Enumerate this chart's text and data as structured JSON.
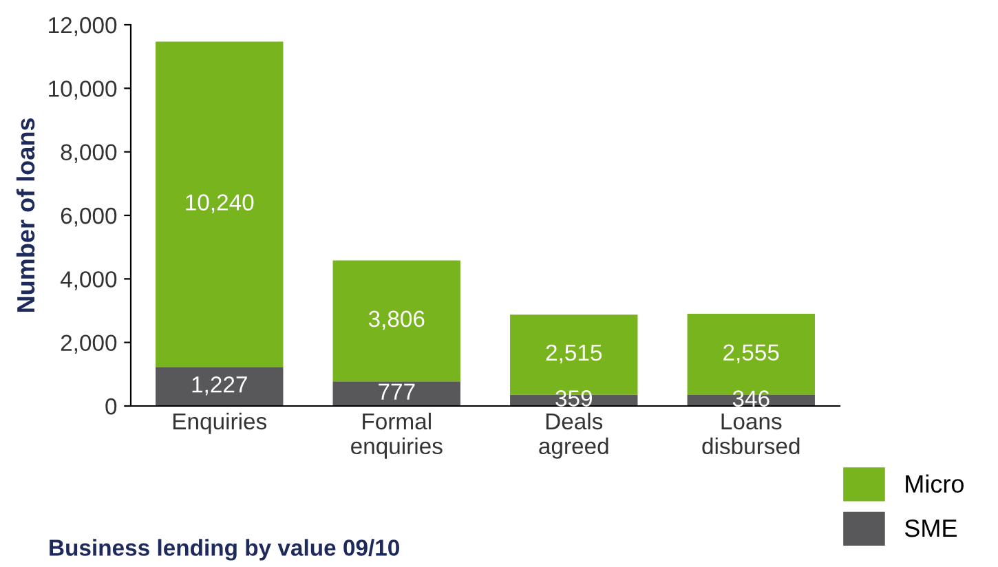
{
  "chart_data": {
    "type": "bar",
    "stacked": true,
    "ylabel": "Number of loans",
    "categories": [
      "Enquiries",
      "Formal\nenquiries",
      "Deals\nagreed",
      "Loans\ndisbursed"
    ],
    "series": [
      {
        "name": "SME",
        "color": "#58585a",
        "values": [
          1227,
          777,
          359,
          346
        ],
        "value_labels": [
          "1,227",
          "777",
          "359",
          "346"
        ]
      },
      {
        "name": "Micro",
        "color": "#78b41e",
        "values": [
          10240,
          3806,
          2515,
          2555
        ],
        "value_labels": [
          "10,240",
          "3,806",
          "2,515",
          "2,555"
        ]
      }
    ],
    "ylim": [
      0,
      12000
    ],
    "yticks": [
      {
        "value": 0,
        "label": "0"
      },
      {
        "value": 2000,
        "label": "2,000"
      },
      {
        "value": 4000,
        "label": "4,000"
      },
      {
        "value": 6000,
        "label": "6,000"
      },
      {
        "value": 8000,
        "label": "8,000"
      },
      {
        "value": 10000,
        "label": "10,000"
      },
      {
        "value": 12000,
        "label": "12,000"
      }
    ],
    "grid": false,
    "legend": "bottom right",
    "annotations": [
      "Business lending by value 09/10"
    ]
  }
}
